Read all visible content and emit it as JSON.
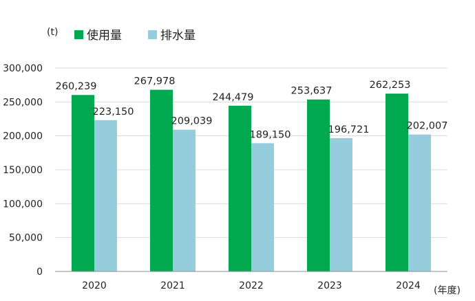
{
  "chart_data": {
    "type": "bar",
    "y_unit": "(t)",
    "x_unit": "(年度)",
    "categories": [
      "2020",
      "2021",
      "2022",
      "2023",
      "2024"
    ],
    "series": [
      {
        "name": "使用量",
        "color": "#00a94f",
        "values": [
          260239,
          267978,
          244479,
          253637,
          262253
        ],
        "labels": [
          "260,239",
          "267,978",
          "244,479",
          "253,637",
          "262,253"
        ]
      },
      {
        "name": "排水量",
        "color": "#96cddc",
        "values": [
          223150,
          209039,
          189150,
          196721,
          202007
        ],
        "labels": [
          "223,150",
          "209,039",
          "189,150",
          "196,721",
          "202,007"
        ]
      }
    ],
    "ylim": [
      0,
      300000
    ],
    "yticks": [
      0,
      50000,
      100000,
      150000,
      200000,
      250000,
      300000
    ],
    "ytick_labels": [
      "0",
      "50,000",
      "100,000",
      "150,000",
      "200,000",
      "250,000",
      "300,000"
    ],
    "grid": true,
    "legend_position": "top-left"
  }
}
